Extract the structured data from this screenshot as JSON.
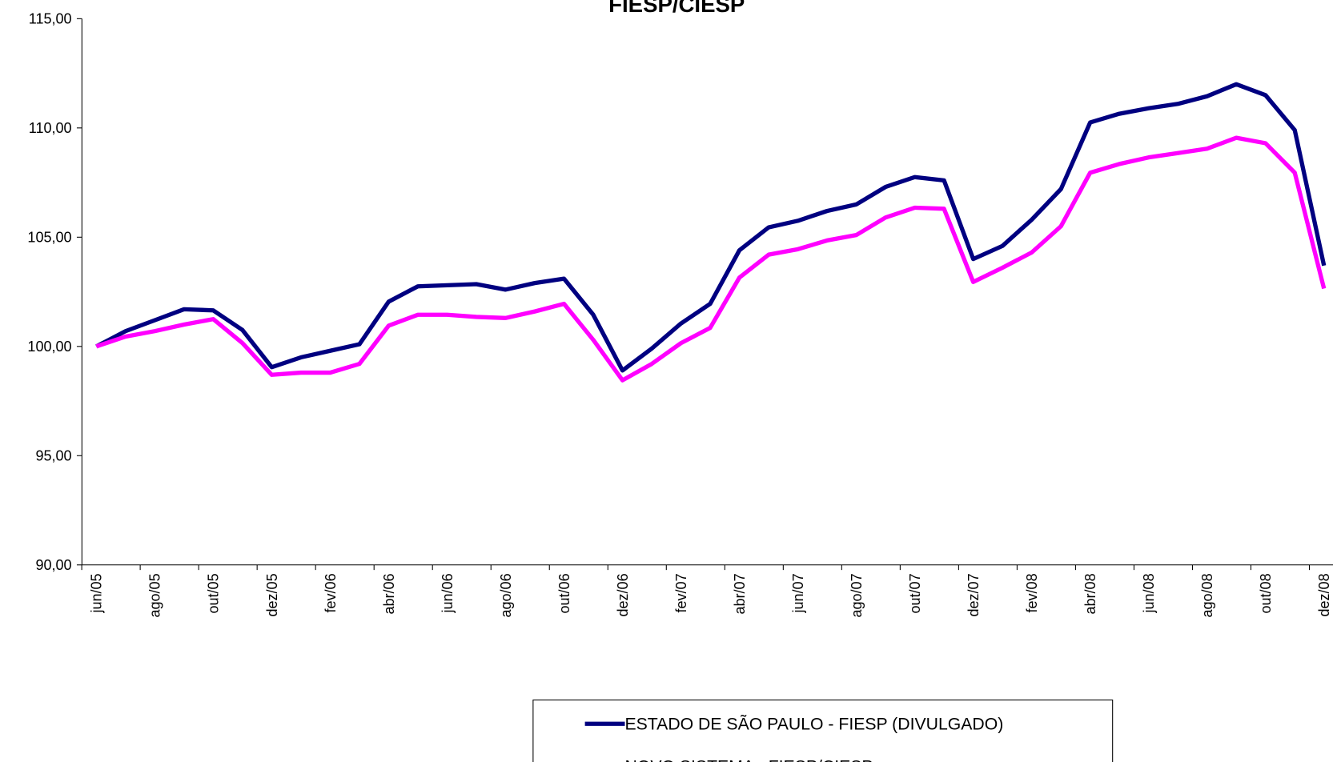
{
  "chart_data": {
    "type": "line",
    "title": "FIESP/CIESP",
    "categories": [
      "jun/05",
      null,
      "ago/05",
      null,
      "out/05",
      null,
      "dez/05",
      null,
      "fev/06",
      null,
      "abr/06",
      null,
      "jun/06",
      null,
      "ago/06",
      null,
      "out/06",
      null,
      "dez/06",
      null,
      "fev/07",
      null,
      "abr/07",
      null,
      "jun/07",
      null,
      "ago/07",
      null,
      "out/07",
      null,
      "dez/07",
      null,
      "fev/08",
      null,
      "abr/08",
      null,
      "jun/08",
      null,
      "ago/08",
      null,
      "out/08",
      null,
      "dez/08"
    ],
    "series": [
      {
        "name": "ESTADO DE SÃO PAULO - FIESP (DIVULGADO)",
        "color": "#000080",
        "values": [
          100.0,
          100.7,
          101.2,
          101.7,
          101.65,
          100.75,
          99.05,
          99.5,
          99.8,
          100.1,
          102.05,
          102.75,
          102.8,
          102.85,
          102.6,
          102.9,
          103.1,
          101.45,
          98.9,
          99.9,
          101.05,
          101.95,
          104.4,
          105.45,
          105.75,
          106.2,
          106.5,
          107.3,
          107.75,
          107.6,
          104.0,
          104.6,
          105.8,
          107.2,
          110.25,
          110.65,
          110.9,
          111.1,
          111.45,
          112.0,
          111.5,
          109.9,
          103.7
        ]
      },
      {
        "name": "NOVO SISTEMA - FIESP/CIESP",
        "color": "#ff00ff",
        "values": [
          100.0,
          100.45,
          100.7,
          101.0,
          101.25,
          100.15,
          98.7,
          98.8,
          98.8,
          99.2,
          100.95,
          101.45,
          101.45,
          101.35,
          101.3,
          101.6,
          101.95,
          100.3,
          98.45,
          99.2,
          100.15,
          100.85,
          103.15,
          104.2,
          104.45,
          104.85,
          105.1,
          105.9,
          106.35,
          106.3,
          102.95,
          103.6,
          104.3,
          105.5,
          107.95,
          108.35,
          108.65,
          108.85,
          109.05,
          109.55,
          109.3,
          107.95,
          102.65
        ]
      }
    ],
    "ylim": [
      90,
      115
    ],
    "yticks": [
      {
        "value": 90,
        "label": "90,00"
      },
      {
        "value": 95,
        "label": "95,00"
      },
      {
        "value": 100,
        "label": "100,00"
      },
      {
        "value": 105,
        "label": "105,00"
      },
      {
        "value": 110,
        "label": "110,00"
      },
      {
        "value": 115,
        "label": "115,00"
      }
    ],
    "grid": false
  }
}
